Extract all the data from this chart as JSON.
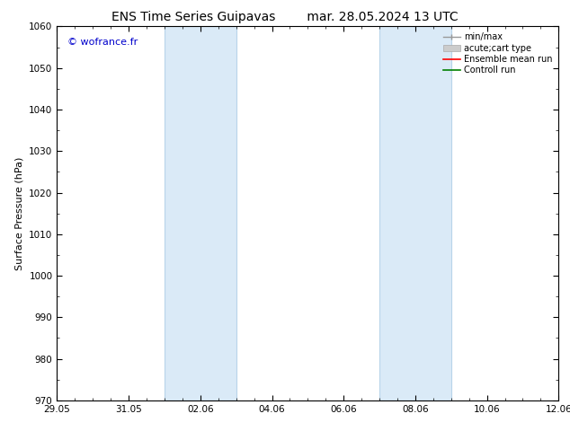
{
  "title_left": "ENS Time Series Guipavas",
  "title_right": "mar. 28.05.2024 13 UTC",
  "ylabel": "Surface Pressure (hPa)",
  "ylim": [
    970,
    1060
  ],
  "yticks": [
    970,
    980,
    990,
    1000,
    1010,
    1020,
    1030,
    1040,
    1050,
    1060
  ],
  "xtick_labels": [
    "29.05",
    "31.05",
    "02.06",
    "04.06",
    "06.06",
    "08.06",
    "10.06",
    "12.06"
  ],
  "xtick_positions": [
    0,
    2,
    4,
    6,
    8,
    10,
    12,
    14
  ],
  "xlim": [
    0,
    14
  ],
  "shaded_regions": [
    {
      "x_start": 3.0,
      "x_end": 5.0,
      "color": "#daeaf7",
      "edge": "#b8d4ea"
    },
    {
      "x_start": 9.0,
      "x_end": 11.0,
      "color": "#daeaf7",
      "edge": "#b8d4ea"
    }
  ],
  "watermark_text": "© wofrance.fr",
  "watermark_color": "#0000cc",
  "watermark_fontsize": 8,
  "background_color": "#ffffff",
  "spine_color": "#000000",
  "tick_color": "#000000",
  "title_fontsize": 10,
  "ylabel_fontsize": 8,
  "tick_fontsize": 7.5,
  "legend_fontsize": 7,
  "minmax_color": "#999999",
  "band_color": "#cccccc",
  "ens_color": "#ff0000",
  "ctrl_color": "#008000"
}
